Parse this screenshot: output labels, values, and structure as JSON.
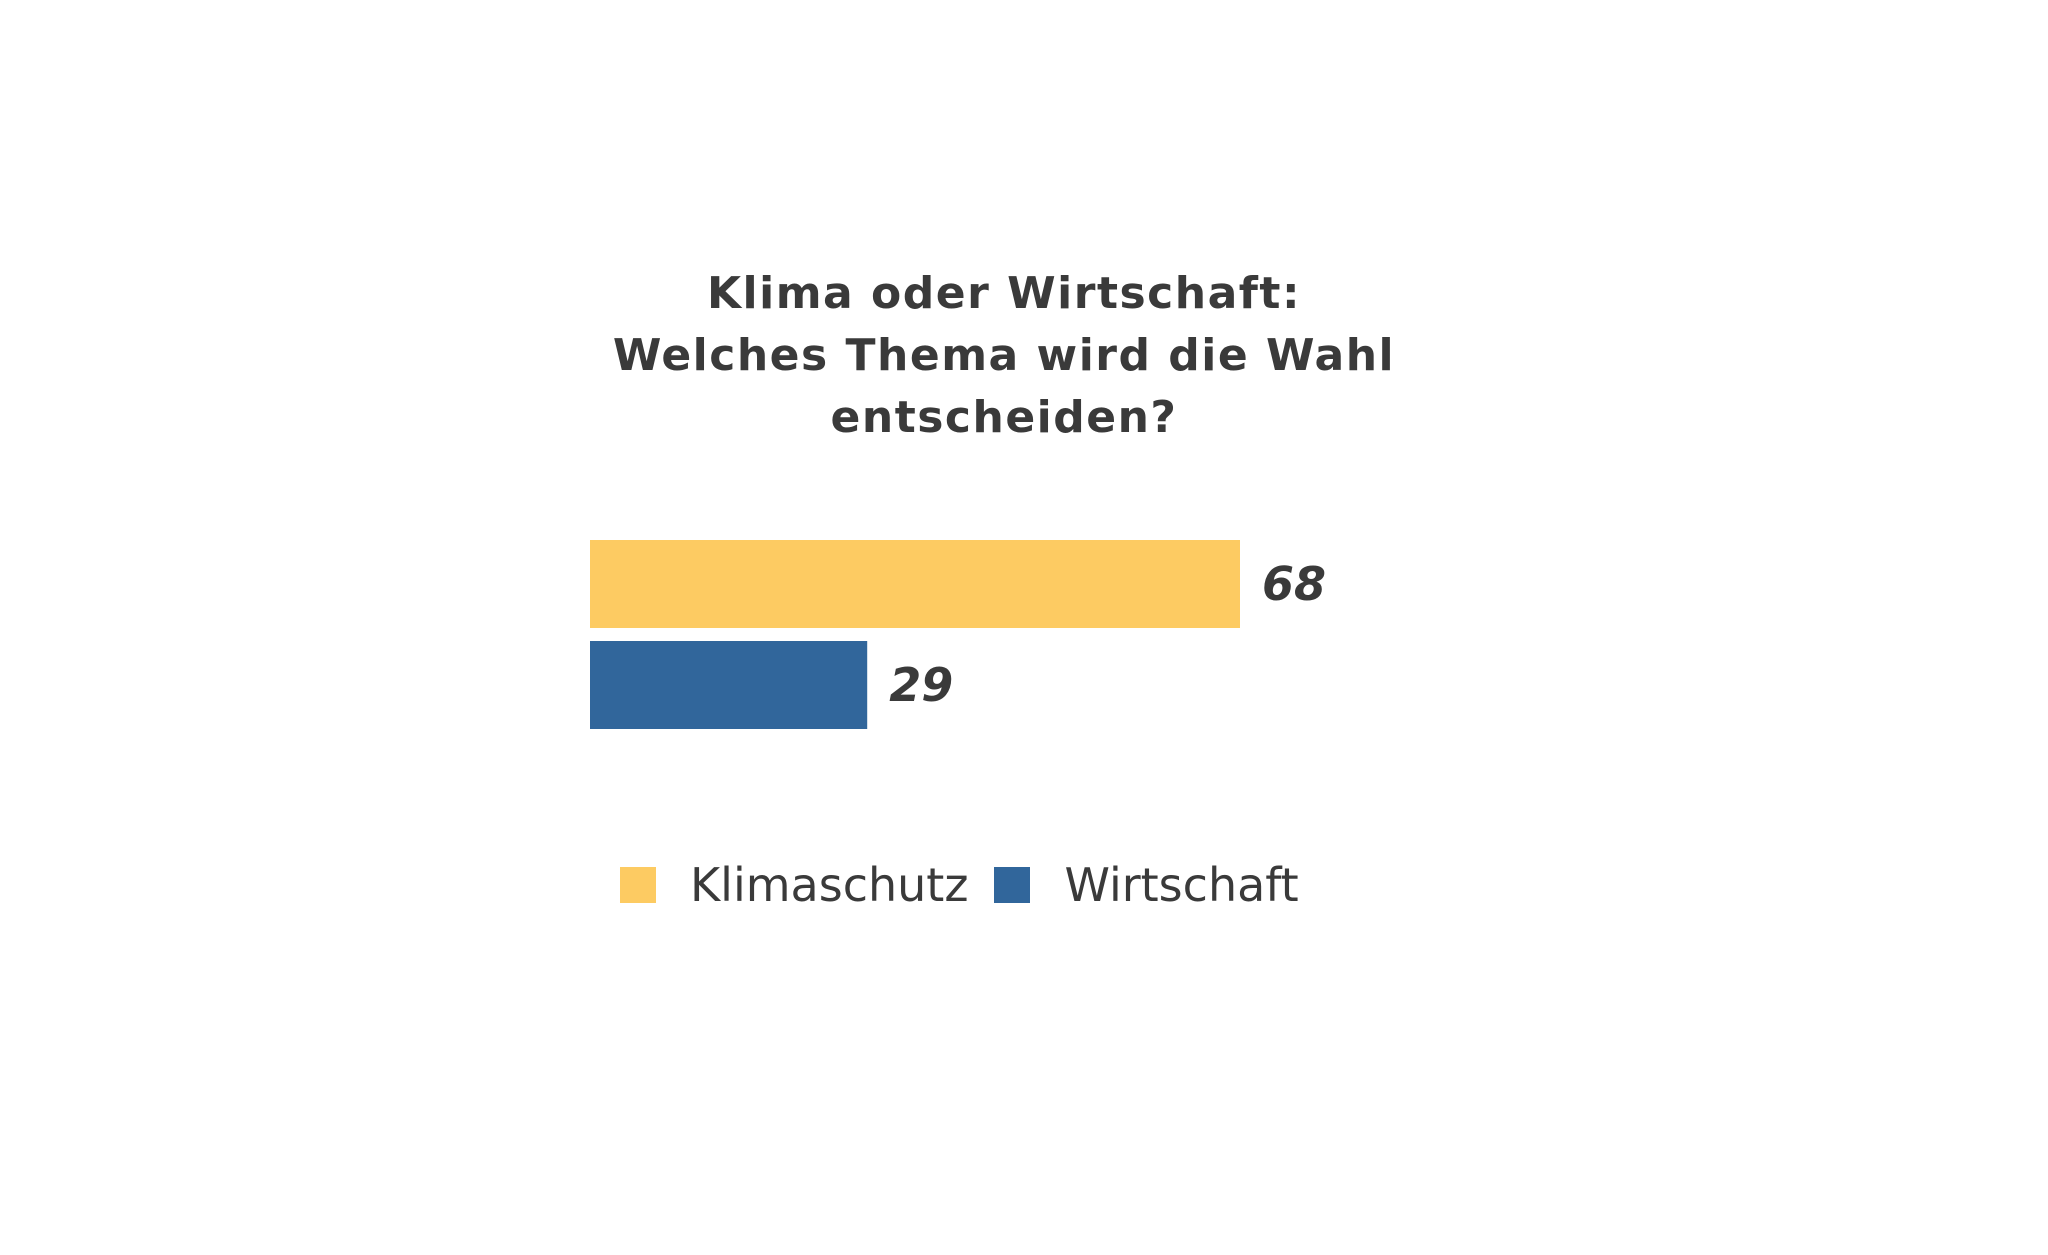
{
  "chart_data": {
    "type": "bar",
    "orientation": "horizontal",
    "title_lines": [
      "Klima oder Wirtschaft:",
      "Welches Thema wird die Wahl",
      "entscheiden?"
    ],
    "categories": [
      "Klimaschutz",
      "Wirtschaft"
    ],
    "values": [
      68,
      29
    ],
    "value_labels": [
      "68",
      "29"
    ],
    "colors": [
      "#fdcb62",
      "#31669b"
    ],
    "legend": {
      "placement": "bottom",
      "entries": [
        {
          "label": "Klimaschutz",
          "color": "#fdcb62"
        },
        {
          "label": "Wirtschaft",
          "color": "#31669b"
        }
      ]
    },
    "xlim": [
      0,
      68
    ],
    "grid": false,
    "axes_visible": false
  }
}
